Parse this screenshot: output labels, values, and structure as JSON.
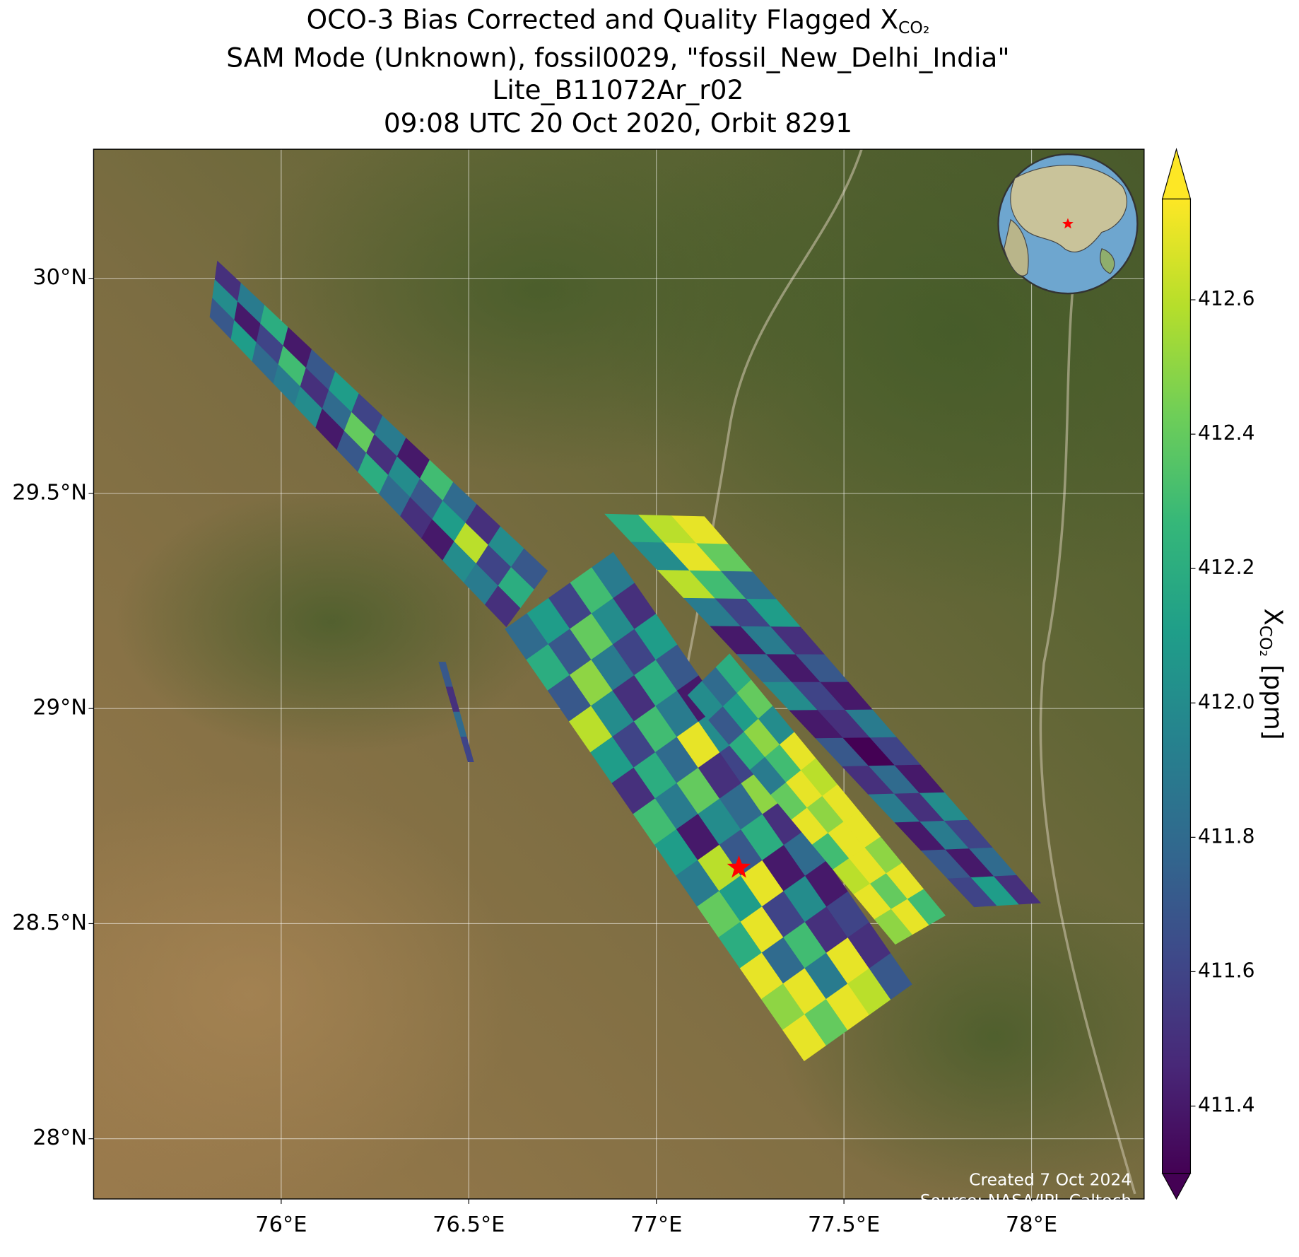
{
  "chart_data": {
    "type": "map",
    "title_lines": [
      {
        "text": "OCO-3 Bias Corrected and Quality Flagged X",
        "subscript": "CO₂"
      },
      {
        "text": "SAM Mode (Unknown), fossil0029, \"fossil_New_Delhi_India\""
      },
      {
        "text": "Lite_B11072Ar_r02"
      },
      {
        "text": "09:08 UTC 20 Oct 2020, Orbit 8291"
      }
    ],
    "xlim": [
      75.5,
      78.3
    ],
    "ylim": [
      27.86,
      30.3
    ],
    "xticks": [
      {
        "value": 76,
        "label": "76°E"
      },
      {
        "value": 76.5,
        "label": "76.5°E"
      },
      {
        "value": 77,
        "label": "77°E"
      },
      {
        "value": 77.5,
        "label": "77.5°E"
      },
      {
        "value": 78,
        "label": "78°E"
      }
    ],
    "yticks": [
      {
        "value": 28,
        "label": "28°N"
      },
      {
        "value": 28.5,
        "label": "28.5°N"
      },
      {
        "value": 29,
        "label": "29°N"
      },
      {
        "value": 29.5,
        "label": "29.5°N"
      },
      {
        "value": 30,
        "label": "30°N"
      }
    ],
    "grid": true,
    "colormap": "viridis",
    "clim": [
      411.3,
      412.75
    ],
    "colorbar_ticks": [
      411.4,
      411.6,
      411.8,
      {
        "value": 412,
        "label": "412.0"
      },
      412.2,
      412.4,
      412.6
    ],
    "colorbar_label": {
      "text": "X",
      "subscript": "CO₂",
      "suffix": " [ppm]"
    },
    "site": {
      "lon": 77.22,
      "lat": 28.63,
      "color": "#ff0000"
    },
    "annotations": [
      "Created 7 Oct 2024",
      "Source: NASA/JPL-Caltech"
    ],
    "swaths": [
      {
        "corners": [
          [
            76.885,
            29.363
          ],
          [
            76.597,
            29.185
          ],
          [
            77.394,
            28.181
          ],
          [
            77.681,
            28.359
          ]
        ],
        "values": [
          [
            411.9,
            412.3,
            411.6,
            412.1,
            411.8
          ],
          [
            411.5,
            412.0,
            412.4,
            411.7,
            412.2
          ],
          [
            412.1,
            411.6,
            411.9,
            412.5,
            411.7
          ],
          [
            411.7,
            412.2,
            411.5,
            412.0,
            412.6
          ],
          [
            411.4,
            411.9,
            412.3,
            411.6,
            412.1
          ],
          [
            412.0,
            412.7,
            411.8,
            412.2,
            411.5
          ],
          [
            411.6,
            411.5,
            412.4,
            411.9,
            412.3
          ],
          [
            412.5,
            411.8,
            412.0,
            411.4,
            412.1
          ],
          [
            411.5,
            412.2,
            411.7,
            412.6,
            411.9
          ],
          [
            411.8,
            411.4,
            412.7,
            412.1,
            412.4
          ],
          [
            411.4,
            412.0,
            411.6,
            412.7,
            412.2
          ],
          [
            411.6,
            411.5,
            412.3,
            411.8,
            412.7
          ],
          [
            411.5,
            412.7,
            411.9,
            412.7,
            412.5
          ],
          [
            411.7,
            412.6,
            412.7,
            412.4,
            412.7
          ]
        ]
      },
      {
        "corners": [
          [
            77.195,
            29.127
          ],
          [
            77.084,
            29.031
          ],
          [
            77.637,
            28.452
          ],
          [
            77.77,
            28.519
          ]
        ],
        "values": [
          [
            412.2,
            411.8,
            412.0
          ],
          [
            412.4,
            412.1,
            411.7
          ],
          [
            412.0,
            412.5,
            412.2
          ],
          [
            412.7,
            412.3,
            411.9
          ],
          [
            412.6,
            412.7,
            412.4
          ],
          [
            412.7,
            412.5,
            412.7
          ],
          [
            412.7,
            412.7,
            412.3
          ],
          [
            412.5,
            412.7,
            412.6
          ],
          [
            412.7,
            412.4,
            412.7
          ],
          [
            412.3,
            412.7,
            412.5
          ]
        ]
      },
      {
        "corners": [
          [
            77.128,
            29.446
          ],
          [
            76.863,
            29.452
          ],
          [
            77.847,
            28.539
          ],
          [
            78.024,
            28.548
          ]
        ],
        "values": [
          [
            412.7,
            412.6,
            412.2
          ],
          [
            412.4,
            412.7,
            412.0
          ],
          [
            411.8,
            412.3,
            412.6
          ],
          [
            412.1,
            411.6,
            411.9
          ],
          [
            411.5,
            411.9,
            411.4
          ],
          [
            411.7,
            411.4,
            411.8
          ],
          [
            411.4,
            411.6,
            412.0
          ],
          [
            411.9,
            411.5,
            411.4
          ],
          [
            411.6,
            411.3,
            411.7
          ],
          [
            411.4,
            411.8,
            411.5
          ],
          [
            412.0,
            411.5,
            411.9
          ],
          [
            411.6,
            411.9,
            411.4
          ],
          [
            411.8,
            411.4,
            411.7
          ],
          [
            411.5,
            412.1,
            411.6
          ]
        ]
      },
      {
        "corners": [
          [
            75.83,
            30.04
          ],
          [
            75.81,
            29.91
          ],
          [
            76.6,
            29.19
          ],
          [
            76.71,
            29.32
          ]
        ],
        "values": [
          [
            411.5,
            412.0,
            411.7
          ],
          [
            411.9,
            411.4,
            412.1
          ],
          [
            412.2,
            411.6,
            411.8
          ],
          [
            411.4,
            412.3,
            411.9
          ],
          [
            411.7,
            411.5,
            412.0
          ],
          [
            412.1,
            411.8,
            411.4
          ],
          [
            411.6,
            412.4,
            411.7
          ],
          [
            411.9,
            411.5,
            412.2
          ],
          [
            411.4,
            412.0,
            411.8
          ],
          [
            412.3,
            411.7,
            411.5
          ],
          [
            411.8,
            412.1,
            411.4
          ],
          [
            411.5,
            412.6,
            412.0
          ],
          [
            412.0,
            411.6,
            411.9
          ],
          [
            411.7,
            412.2,
            411.5
          ]
        ]
      },
      {
        "corners": [
          [
            76.438,
            29.108
          ],
          [
            76.42,
            29.108
          ],
          [
            76.498,
            28.876
          ],
          [
            76.513,
            28.876
          ]
        ],
        "values": [
          [
            411.7
          ],
          [
            411.5
          ],
          [
            411.8
          ],
          [
            411.6
          ]
        ]
      }
    ]
  }
}
